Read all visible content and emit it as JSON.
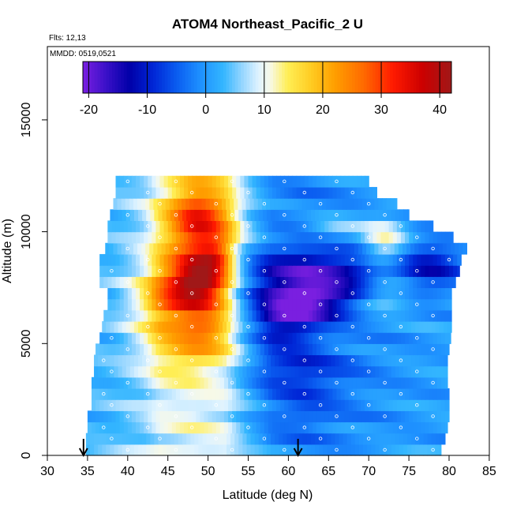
{
  "chart_data": {
    "type": "heatmap",
    "title": "ATOM4 Northeast_Pacific_2 U",
    "subtitle_flights": "Flts: 12,13",
    "subtitle_date": "MMDD: 0519,0521",
    "xlabel": "Latitude (deg N)",
    "ylabel": "Altitude (m)",
    "xlim": [
      30,
      85
    ],
    "ylim": [
      0,
      17500
    ],
    "x_ticks": [
      30,
      35,
      40,
      45,
      50,
      55,
      60,
      65,
      70,
      75,
      80,
      85
    ],
    "y_ticks": [
      0,
      5000,
      10000,
      15000
    ],
    "colorbar": {
      "range": [
        -21,
        42
      ],
      "ticks": [
        -20,
        -10,
        0,
        10,
        20,
        30,
        40
      ],
      "stops": [
        {
          "v": -21,
          "color": "#7a1fe0"
        },
        {
          "v": -17,
          "color": "#3a10c8"
        },
        {
          "v": -13,
          "color": "#0000a8"
        },
        {
          "v": -9,
          "color": "#0026d6"
        },
        {
          "v": -5,
          "color": "#0a5cf0"
        },
        {
          "v": -1,
          "color": "#1e90ff"
        },
        {
          "v": 3,
          "color": "#33b6ff"
        },
        {
          "v": 6,
          "color": "#8fd3ff"
        },
        {
          "v": 9,
          "color": "#dff3ff"
        },
        {
          "v": 11,
          "color": "#f7f9e8"
        },
        {
          "v": 14,
          "color": "#ffee55"
        },
        {
          "v": 18,
          "color": "#ffcc22"
        },
        {
          "v": 22,
          "color": "#ff9f00"
        },
        {
          "v": 27,
          "color": "#ff6a00"
        },
        {
          "v": 32,
          "color": "#ff1a00"
        },
        {
          "v": 37,
          "color": "#cc0000"
        },
        {
          "v": 42,
          "color": "#a01818"
        }
      ]
    },
    "markers": [
      {
        "label": "arrow",
        "lat": 34.5
      },
      {
        "label": "arrow",
        "lat": 61.2
      }
    ],
    "grid": {
      "lat_start": 34,
      "lat_step": 0.5,
      "alt_step": 500,
      "alt_count": 25,
      "row_ranges": [
        [
          34.8,
          79.0
        ],
        [
          34.8,
          79.5
        ],
        [
          35.0,
          79.8
        ],
        [
          35.0,
          80.0
        ],
        [
          35.5,
          80.0
        ],
        [
          35.5,
          80.0
        ],
        [
          35.5,
          79.8
        ],
        [
          35.8,
          79.8
        ],
        [
          35.8,
          79.8
        ],
        [
          36.0,
          80.0
        ],
        [
          36.5,
          80.2
        ],
        [
          36.8,
          80.3
        ],
        [
          37.0,
          80.3
        ],
        [
          37.5,
          80.3
        ],
        [
          37.5,
          80.3
        ],
        [
          36.5,
          80.8
        ],
        [
          36.5,
          81.3
        ],
        [
          36.5,
          81.5
        ],
        [
          37.2,
          82.2
        ],
        [
          37.5,
          80.5
        ],
        [
          37.5,
          78.0
        ],
        [
          37.8,
          75.0
        ],
        [
          38.2,
          73.5
        ],
        [
          38.5,
          71.0
        ],
        [
          38.5,
          70.0
        ]
      ],
      "background_by_lat": {
        "lats": [
          34,
          38,
          42,
          44,
          48,
          52,
          55,
          58,
          62,
          66,
          70,
          74,
          78,
          82
        ],
        "values": [
          2.5,
          3.5,
          6,
          9,
          10,
          9,
          3,
          -1,
          -2,
          -1,
          -0.5,
          0,
          0.5,
          1
        ]
      },
      "features": [
        {
          "lat": 49,
          "alt": 10500,
          "slat": 3.0,
          "salt": 1200,
          "amp": 24
        },
        {
          "lat": 51,
          "alt": 9000,
          "slat": 1.5,
          "salt": 500,
          "amp": 10
        },
        {
          "lat": 49.5,
          "alt": 7800,
          "slat": 2.5,
          "salt": 800,
          "amp": 28
        },
        {
          "lat": 46,
          "alt": 7300,
          "slat": 3.0,
          "salt": 1100,
          "amp": 12
        },
        {
          "lat": 50,
          "alt": 5800,
          "slat": 2.0,
          "salt": 600,
          "amp": 10
        },
        {
          "lat": 49,
          "alt": 4700,
          "slat": 4.0,
          "salt": 800,
          "amp": 8
        },
        {
          "lat": 45,
          "alt": 6500,
          "slat": 3.0,
          "salt": 1500,
          "amp": 6
        },
        {
          "lat": 72,
          "alt": 9500,
          "slat": 2.0,
          "salt": 800,
          "amp": 12
        },
        {
          "lat": 72,
          "alt": 7200,
          "slat": 2.5,
          "salt": 500,
          "amp": 9
        },
        {
          "lat": 66,
          "alt": 10200,
          "slat": 3.0,
          "salt": 400,
          "amp": 6
        },
        {
          "lat": 63,
          "alt": 8100,
          "slat": 7.0,
          "salt": 800,
          "amp": -15
        },
        {
          "lat": 62,
          "alt": 6800,
          "slat": 4.0,
          "salt": 600,
          "amp": -16
        },
        {
          "lat": 59,
          "alt": 5800,
          "slat": 3.0,
          "salt": 700,
          "amp": -10
        },
        {
          "lat": 78,
          "alt": 8500,
          "slat": 3.0,
          "salt": 800,
          "amp": -10
        },
        {
          "lat": 60,
          "alt": 4000,
          "slat": 6.0,
          "salt": 600,
          "amp": -6
        },
        {
          "lat": 62,
          "alt": 2500,
          "slat": 4.0,
          "salt": 1000,
          "amp": -4
        }
      ],
      "point_lats": [
        35,
        37,
        38,
        40,
        42.5,
        44,
        46,
        48,
        51,
        53,
        55,
        57,
        59.5,
        62,
        64,
        66,
        68,
        70,
        72,
        74,
        76,
        78,
        80
      ]
    }
  }
}
